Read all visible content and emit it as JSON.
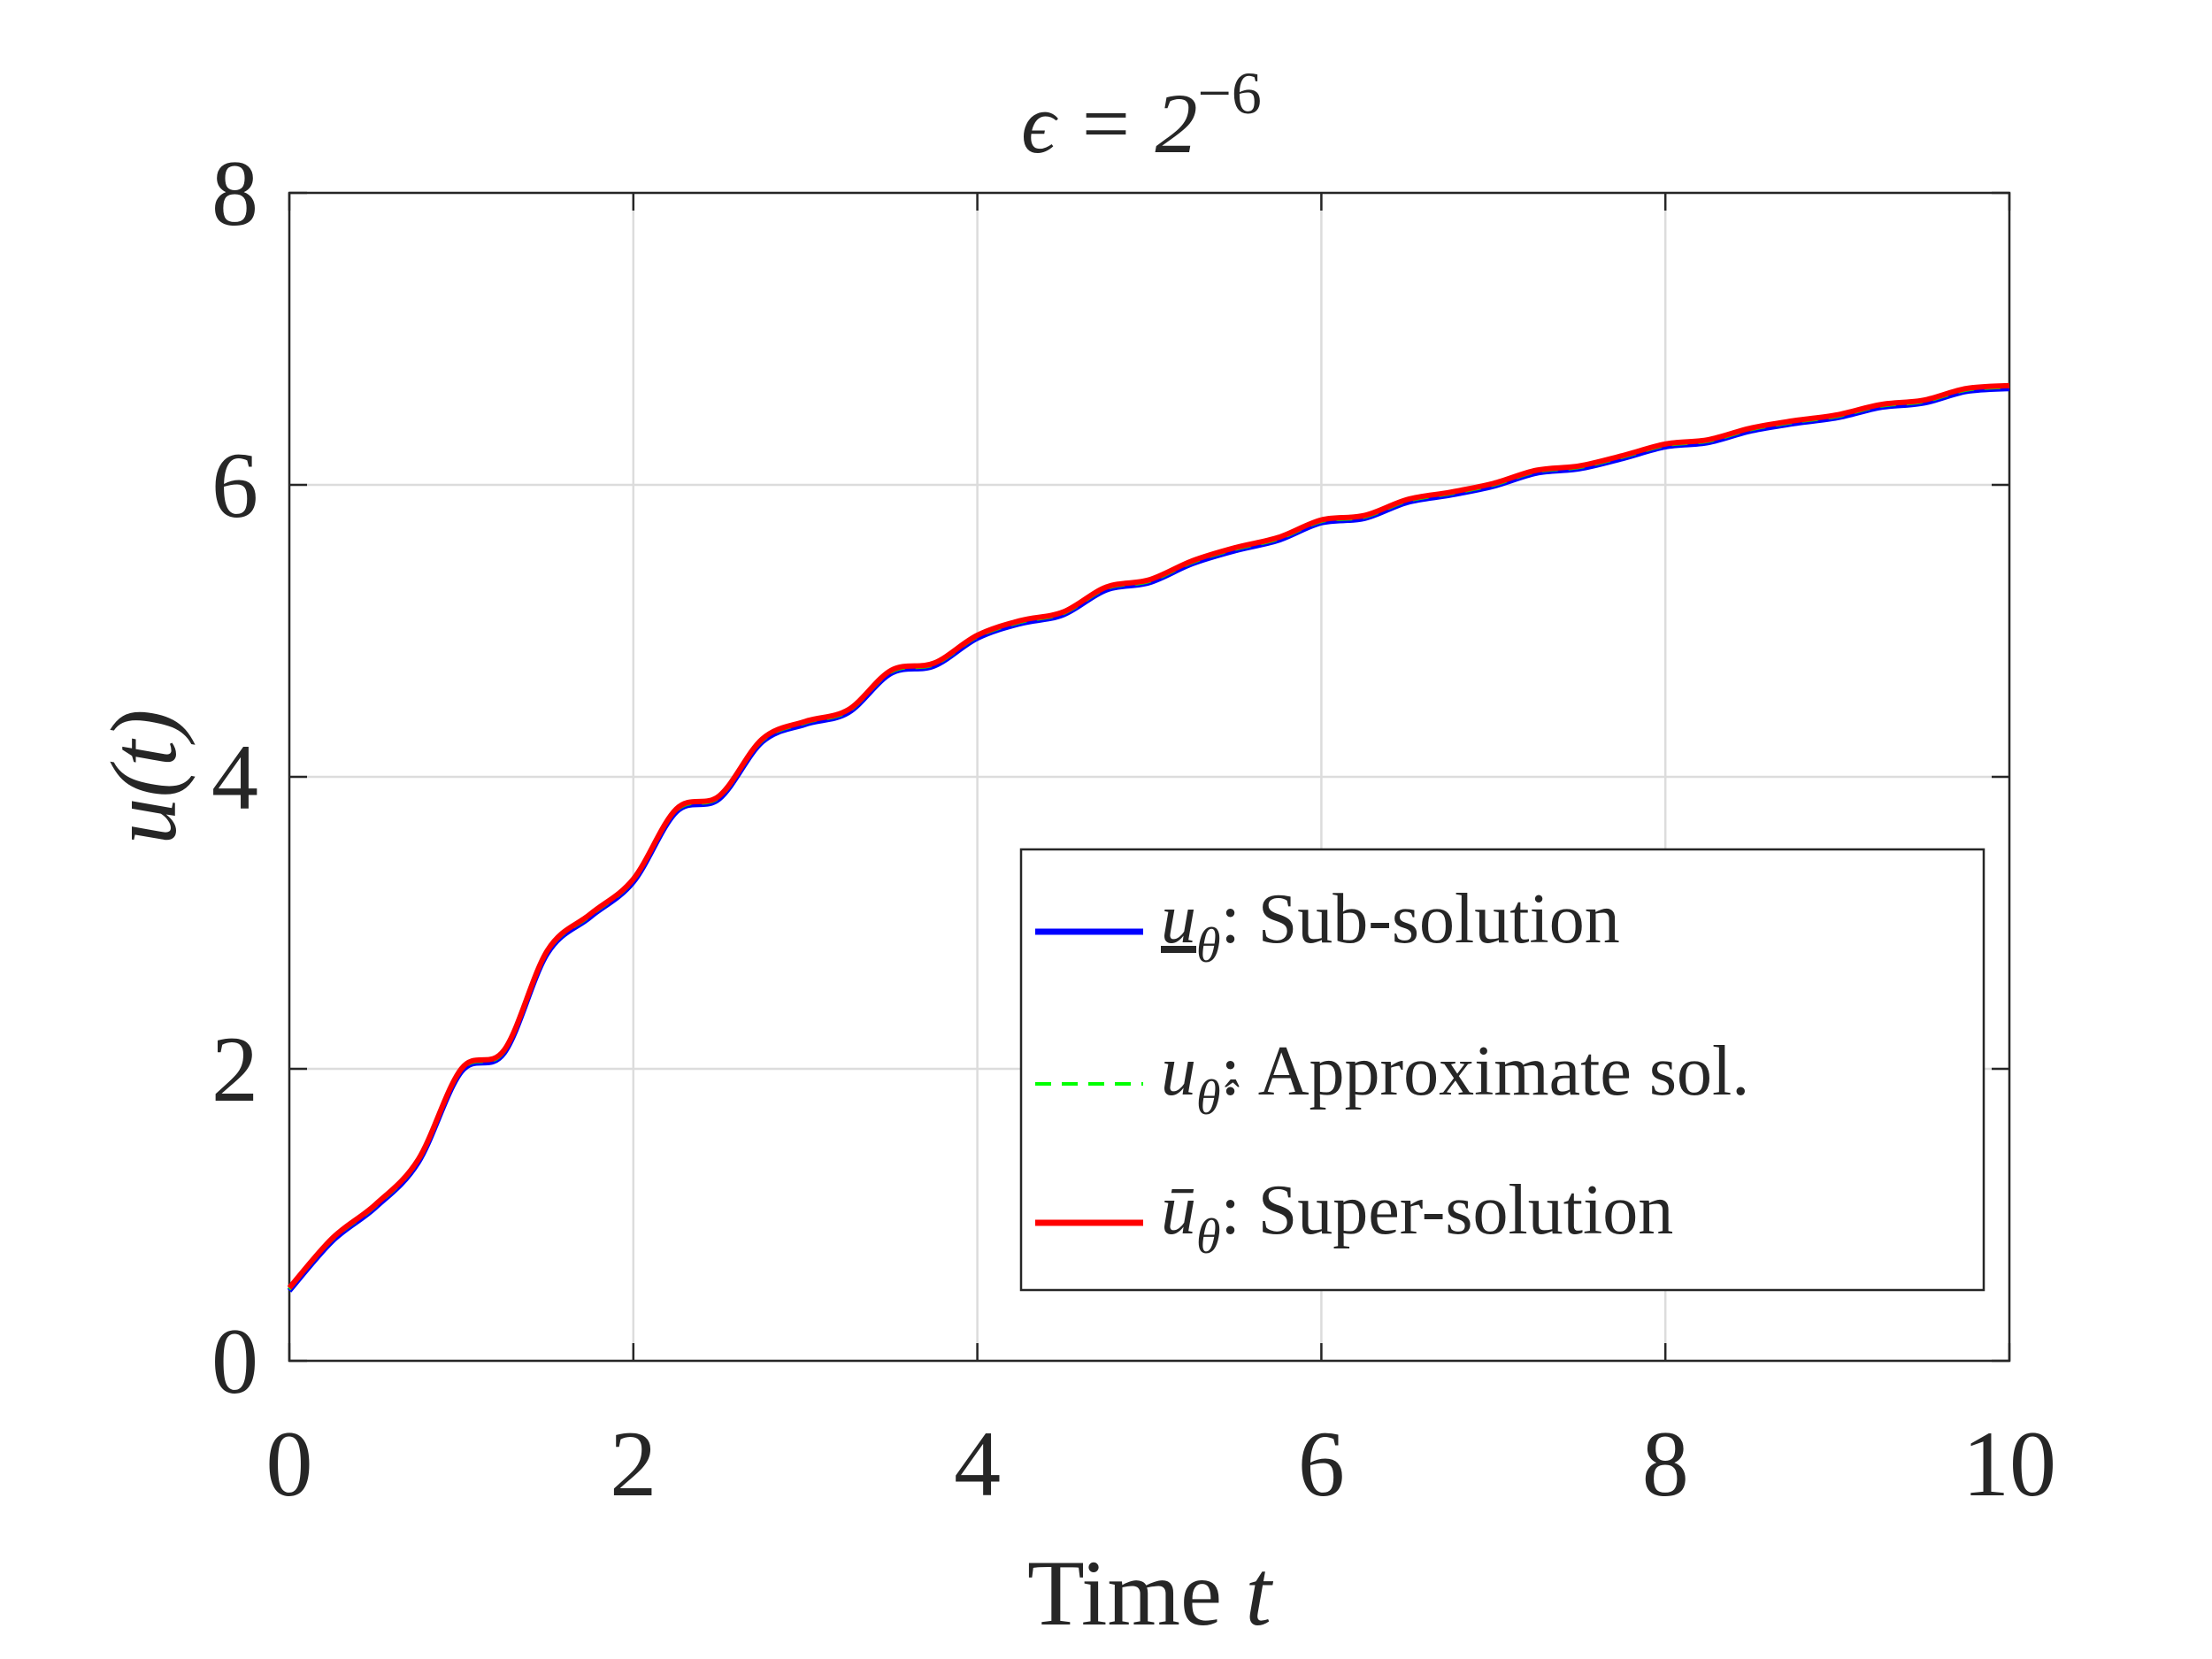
{
  "chart_data": {
    "type": "line",
    "title": "ϵ = 2⁻⁶",
    "title_base": "ϵ = 2",
    "title_exp": "−6",
    "xlabel": "Time t",
    "xlabel_text": "Time ",
    "xlabel_var": "t",
    "ylabel": "u(t)",
    "xlim": [
      0,
      10
    ],
    "ylim": [
      0,
      8
    ],
    "xticks": [
      0,
      2,
      4,
      6,
      8,
      10
    ],
    "yticks": [
      0,
      2,
      4,
      6,
      8
    ],
    "xtick_labels": [
      "0",
      "2",
      "4",
      "6",
      "8",
      "10"
    ],
    "ytick_labels": [
      "0",
      "2",
      "4",
      "6",
      "8"
    ],
    "grid": true,
    "legend_position": "lower-right",
    "x": [
      0,
      0.25,
      0.5,
      0.75,
      1.0,
      1.25,
      1.5,
      1.75,
      2.0,
      2.25,
      2.5,
      2.75,
      3.0,
      3.25,
      3.5,
      3.75,
      4.0,
      4.25,
      4.5,
      4.75,
      5.0,
      5.25,
      5.5,
      5.75,
      6.0,
      6.25,
      6.5,
      6.75,
      7.0,
      7.25,
      7.5,
      7.75,
      8.0,
      8.25,
      8.5,
      8.75,
      9.0,
      9.25,
      9.5,
      9.75,
      10.0
    ],
    "series": [
      {
        "name": "u_θ: Sub-solution",
        "legend_var": "u",
        "legend_sub": "θ",
        "legend_text": ": Sub-solution",
        "color": "#0000ff",
        "style": "solid",
        "values": [
          0.48,
          0.82,
          1.05,
          1.36,
          1.98,
          2.11,
          2.79,
          3.04,
          3.28,
          3.76,
          3.85,
          4.24,
          4.36,
          4.44,
          4.71,
          4.76,
          4.95,
          5.05,
          5.11,
          5.28,
          5.33,
          5.46,
          5.55,
          5.62,
          5.74,
          5.77,
          5.88,
          5.93,
          5.99,
          6.08,
          6.11,
          6.18,
          6.26,
          6.29,
          6.37,
          6.42,
          6.46,
          6.53,
          6.56,
          6.64,
          6.66
        ]
      },
      {
        "name": "u_θ̂: Approximate sol.",
        "legend_var": "u",
        "legend_sub": "θ̂",
        "legend_text": ": Approximate sol.",
        "color": "#00ff00",
        "style": "dashed",
        "values": [
          0.49,
          0.83,
          1.06,
          1.37,
          1.99,
          2.12,
          2.8,
          3.05,
          3.29,
          3.77,
          3.86,
          4.25,
          4.37,
          4.45,
          4.72,
          4.77,
          4.96,
          5.06,
          5.12,
          5.29,
          5.34,
          5.47,
          5.56,
          5.63,
          5.75,
          5.78,
          5.89,
          5.94,
          6.0,
          6.09,
          6.12,
          6.19,
          6.27,
          6.3,
          6.38,
          6.43,
          6.47,
          6.54,
          6.57,
          6.65,
          6.67
        ]
      },
      {
        "name": "ū_θ: Super-solution",
        "legend_var": "ū",
        "legend_sub": "θ",
        "legend_text": ": Super-solution",
        "color": "#ff0000",
        "style": "solid",
        "values": [
          0.5,
          0.84,
          1.07,
          1.38,
          2.0,
          2.13,
          2.81,
          3.06,
          3.3,
          3.78,
          3.87,
          4.26,
          4.38,
          4.46,
          4.73,
          4.78,
          4.97,
          5.07,
          5.13,
          5.3,
          5.35,
          5.48,
          5.57,
          5.64,
          5.76,
          5.79,
          5.9,
          5.95,
          6.01,
          6.1,
          6.13,
          6.2,
          6.28,
          6.31,
          6.39,
          6.44,
          6.48,
          6.55,
          6.58,
          6.66,
          6.68
        ]
      }
    ]
  }
}
